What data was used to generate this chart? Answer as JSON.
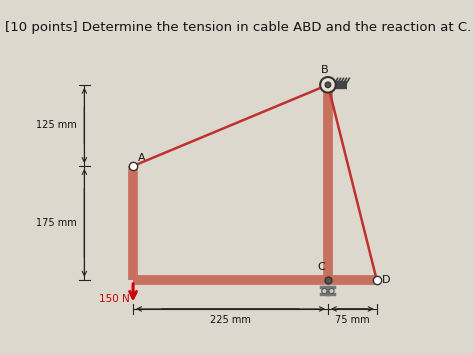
{
  "title": "[10 points] Determine the tension in cable ABD and the reaction at C.",
  "title_fontsize": 9.5,
  "bg_color": "#ddd8ce",
  "struct_color": "#c87060",
  "cable_color": "#c03030",
  "wall_color": "#444444",
  "dim_color": "#222222",
  "label_color": "#111111",
  "force_color": "#cc0000",
  "A": [
    0.0,
    0.0
  ],
  "B": [
    3.0,
    1.25
  ],
  "C": [
    3.0,
    -1.75
  ],
  "D": [
    3.75,
    -1.75
  ],
  "BL": [
    0.0,
    -1.75
  ],
  "xlim": [
    -1.3,
    4.5
  ],
  "ylim": [
    -2.8,
    1.9
  ],
  "struct_lw": 7
}
